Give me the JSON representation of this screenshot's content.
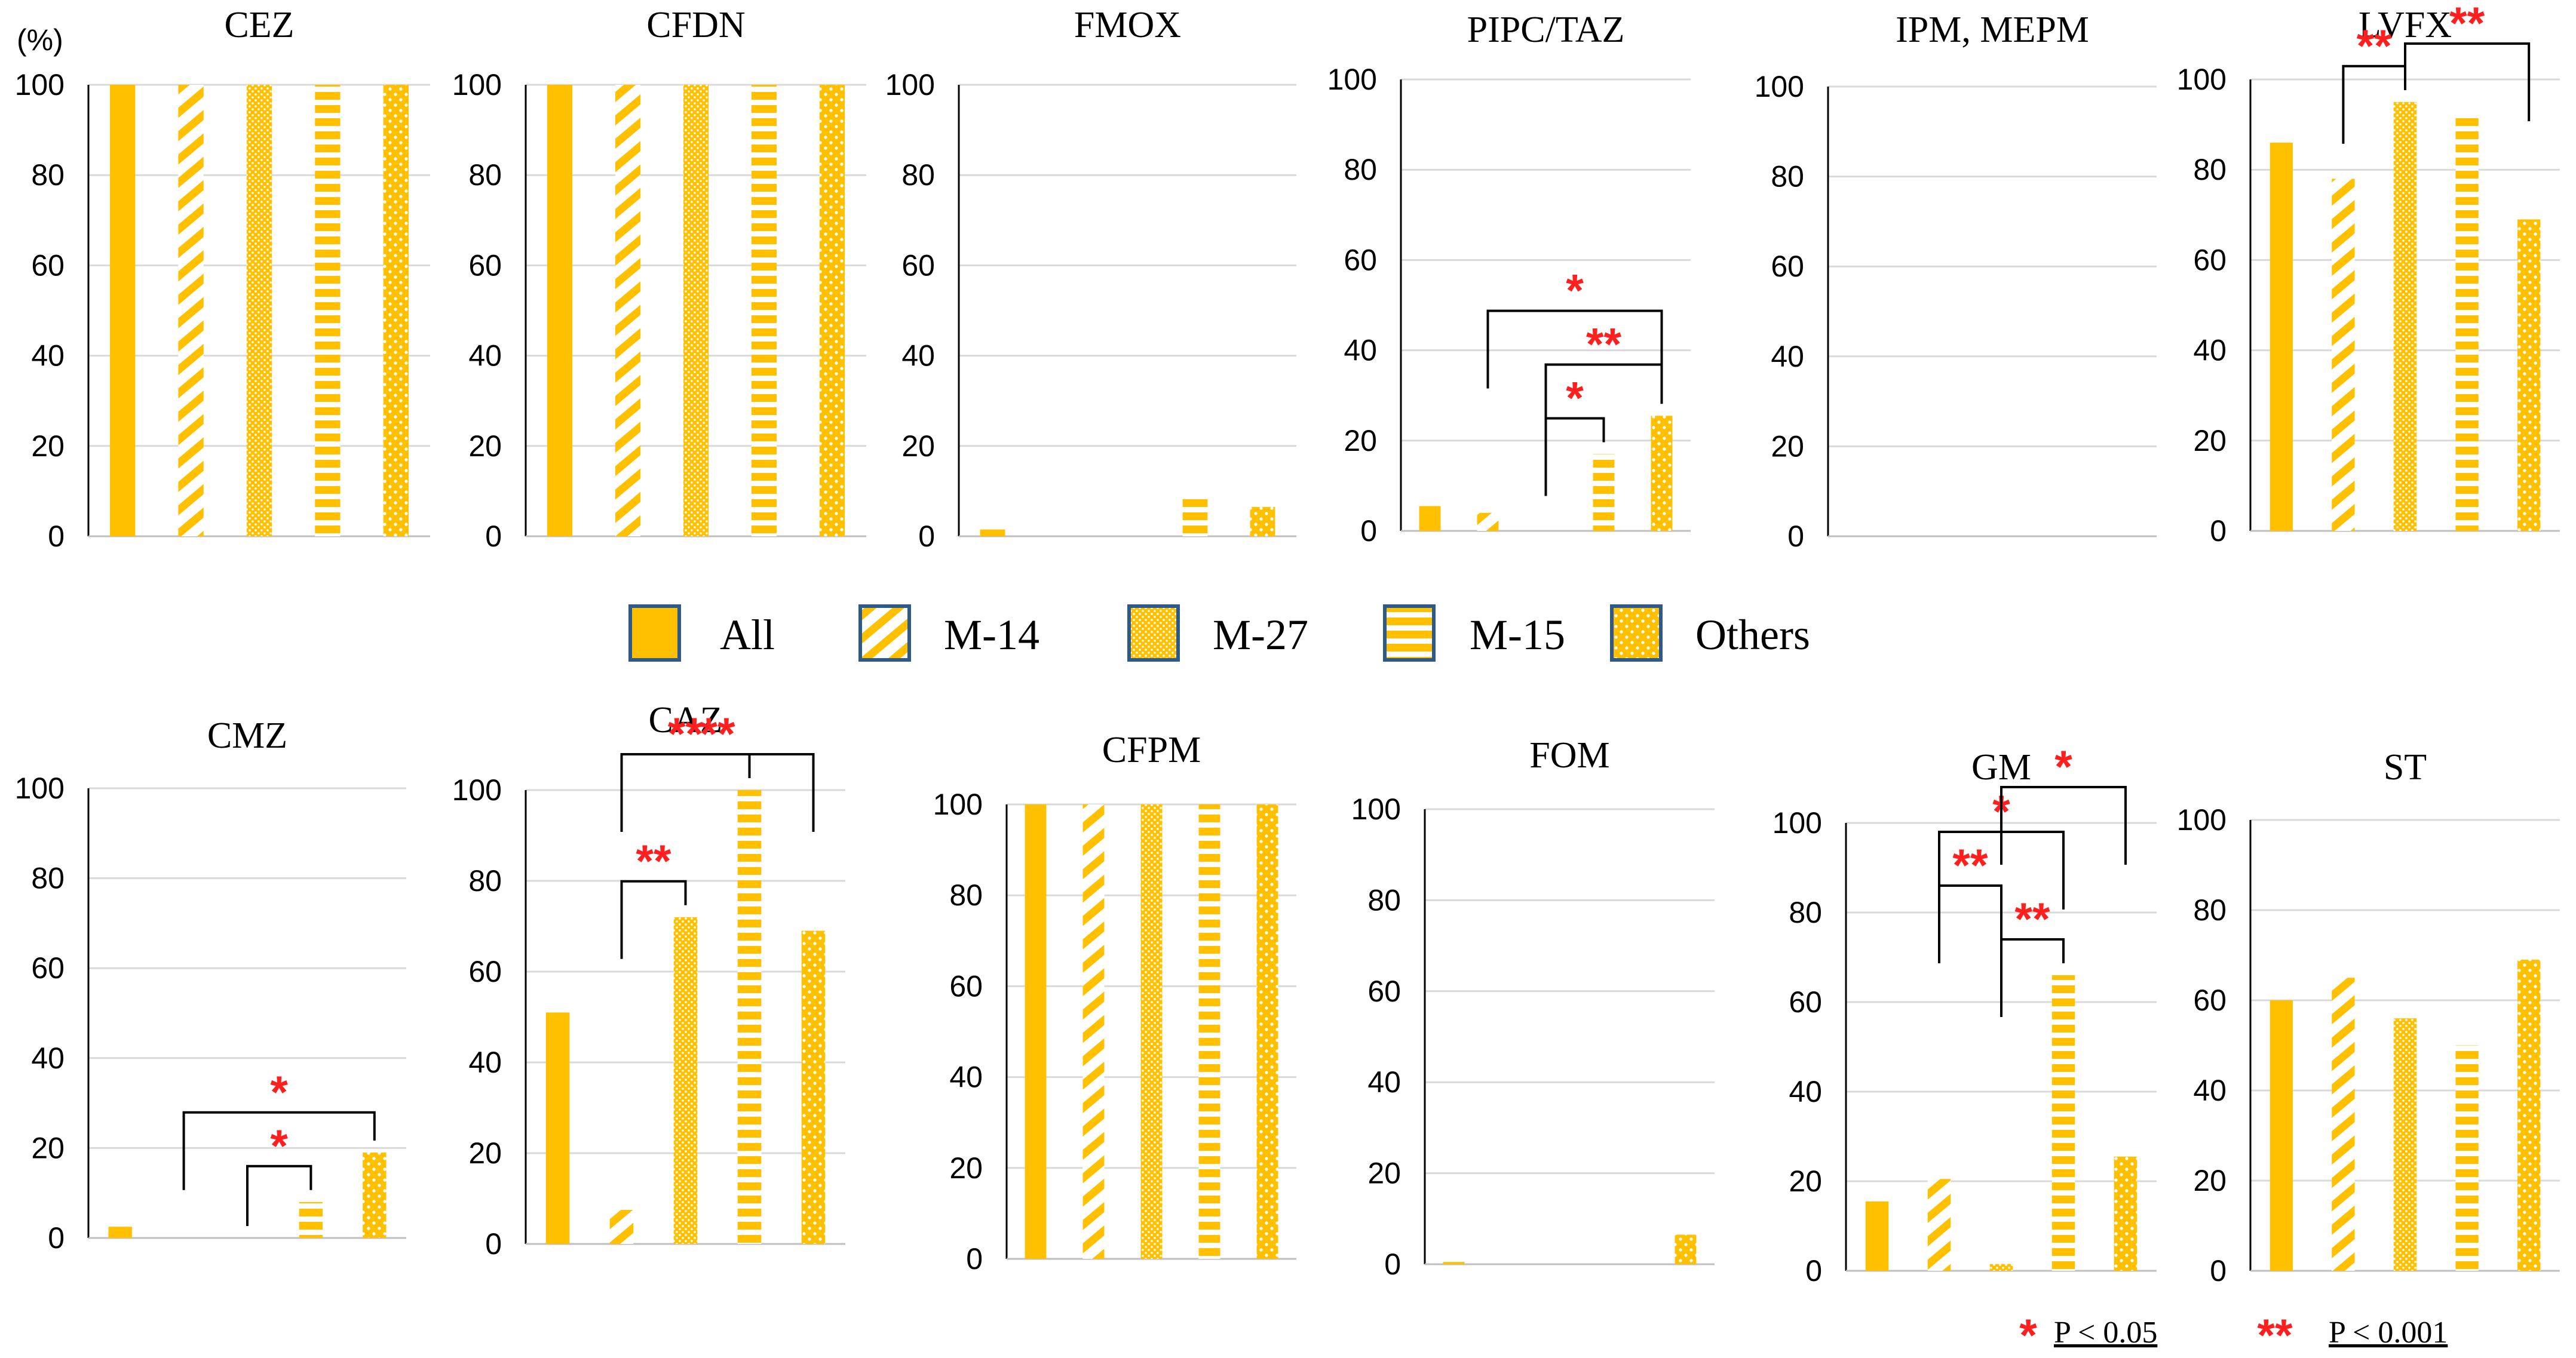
{
  "unit_label": "(%)",
  "colors": {
    "bar": "#ffc000",
    "grid": "#d9d9d9",
    "axis": "#000000",
    "star": "#ff1f1f"
  },
  "legend": [
    {
      "label": "All",
      "pattern": "solid"
    },
    {
      "label": "M-14",
      "pattern": "diag"
    },
    {
      "label": "M-27",
      "pattern": "dots"
    },
    {
      "label": "M-15",
      "pattern": "hstripe"
    },
    {
      "label": "Others",
      "pattern": "spots"
    }
  ],
  "significance_note": {
    "single_star": "*",
    "single_text": "P < 0.05",
    "double_star": "**",
    "double_text": "P < 0.001"
  },
  "chart_data": [
    {
      "type": "bar",
      "title": "CEZ",
      "categories": [
        "All",
        "M-14",
        "M-27",
        "M-15",
        "Others"
      ],
      "values": [
        100,
        100,
        100,
        100,
        100
      ],
      "ylim": [
        0,
        100
      ],
      "yticks": [
        0,
        20,
        40,
        60,
        80,
        100
      ],
      "significance": []
    },
    {
      "type": "bar",
      "title": "CFDN",
      "categories": [
        "All",
        "M-14",
        "M-27",
        "M-15",
        "Others"
      ],
      "values": [
        100,
        100,
        100,
        100,
        100
      ],
      "ylim": [
        0,
        100
      ],
      "yticks": [
        0,
        20,
        40,
        60,
        80,
        100
      ],
      "significance": []
    },
    {
      "type": "bar",
      "title": "FMOX",
      "categories": [
        "All",
        "M-14",
        "M-27",
        "M-15",
        "Others"
      ],
      "values": [
        1.5,
        0,
        0,
        8.5,
        6.5
      ],
      "ylim": [
        0,
        100
      ],
      "yticks": [
        0,
        20,
        40,
        60,
        80,
        100
      ],
      "significance": []
    },
    {
      "type": "bar",
      "title": "PIPC/TAZ",
      "categories": [
        "All",
        "M-14",
        "M-27",
        "M-15",
        "Others"
      ],
      "values": [
        5.5,
        4,
        0,
        17,
        25.5
      ],
      "ylim": [
        0,
        100
      ],
      "yticks": [
        0,
        20,
        40,
        60,
        80,
        100
      ],
      "significance": [
        {
          "from": 1,
          "to": 4,
          "level": "*"
        },
        {
          "from": 2,
          "to": 4,
          "level": "**"
        },
        {
          "from": 2,
          "to": 3,
          "level": "*"
        }
      ]
    },
    {
      "type": "bar",
      "title": "IPM, MEPM",
      "categories": [
        "All",
        "M-14",
        "M-27",
        "M-15",
        "Others"
      ],
      "values": [
        0,
        0,
        0,
        0,
        0
      ],
      "ylim": [
        0,
        100
      ],
      "yticks": [
        0,
        20,
        40,
        60,
        80,
        100
      ],
      "significance": []
    },
    {
      "type": "bar",
      "title": "LVFX",
      "categories": [
        "All",
        "M-14",
        "M-27",
        "M-15",
        "Others"
      ],
      "values": [
        86,
        78,
        95,
        91.5,
        69
      ],
      "ylim": [
        0,
        100
      ],
      "yticks": [
        0,
        20,
        40,
        60,
        80,
        100
      ],
      "significance": [
        {
          "from": 1,
          "to": 2,
          "level": "**"
        },
        {
          "from": 2,
          "to": 4,
          "level": "**"
        }
      ]
    },
    {
      "type": "bar",
      "title": "CMZ",
      "categories": [
        "All",
        "M-14",
        "M-27",
        "M-15",
        "Others"
      ],
      "values": [
        2.5,
        0,
        0,
        8,
        19
      ],
      "ylim": [
        0,
        100
      ],
      "yticks": [
        0,
        20,
        40,
        60,
        80,
        100
      ],
      "significance": [
        {
          "from": 1,
          "to": 4,
          "level": "*"
        },
        {
          "from": 2,
          "to": 3,
          "level": "*"
        }
      ]
    },
    {
      "type": "bar",
      "title": "CAZ",
      "categories": [
        "All",
        "M-14",
        "M-27",
        "M-15",
        "Others"
      ],
      "values": [
        51,
        7.5,
        72,
        100,
        69
      ],
      "ylim": [
        0,
        100
      ],
      "yticks": [
        0,
        20,
        40,
        60,
        80,
        100
      ],
      "significance": [
        {
          "from": 1,
          "to": 4,
          "level": "**"
        },
        {
          "from": 1,
          "to": 3,
          "level": "**"
        },
        {
          "from": 1,
          "to": 2,
          "level": "**"
        }
      ]
    },
    {
      "type": "bar",
      "title": "CFPM",
      "categories": [
        "All",
        "M-14",
        "M-27",
        "M-15",
        "Others"
      ],
      "values": [
        100,
        100,
        100,
        100,
        100
      ],
      "ylim": [
        0,
        100
      ],
      "yticks": [
        0,
        20,
        40,
        60,
        80,
        100
      ],
      "significance": []
    },
    {
      "type": "bar",
      "title": "FOM",
      "categories": [
        "All",
        "M-14",
        "M-27",
        "M-15",
        "Others"
      ],
      "values": [
        0.5,
        0,
        0,
        0,
        6.5
      ],
      "ylim": [
        0,
        100
      ],
      "yticks": [
        0,
        20,
        40,
        60,
        80,
        100
      ],
      "significance": []
    },
    {
      "type": "bar",
      "title": "GM",
      "categories": [
        "All",
        "M-14",
        "M-27",
        "M-15",
        "Others"
      ],
      "values": [
        15.5,
        20.5,
        1.5,
        66,
        25.5
      ],
      "ylim": [
        0,
        100
      ],
      "yticks": [
        0,
        20,
        40,
        60,
        80,
        100
      ],
      "significance": [
        {
          "from": 1,
          "to": 3,
          "level": "*"
        },
        {
          "from": 2,
          "to": 4,
          "level": "*"
        },
        {
          "from": 2,
          "to": 3,
          "level": "**"
        },
        {
          "from": 1,
          "to": 2,
          "level": "**"
        }
      ]
    },
    {
      "type": "bar",
      "title": "ST",
      "categories": [
        "All",
        "M-14",
        "M-27",
        "M-15",
        "Others"
      ],
      "values": [
        60,
        65,
        56,
        50,
        69
      ],
      "ylim": [
        0,
        100
      ],
      "yticks": [
        0,
        20,
        40,
        60,
        80,
        100
      ],
      "significance": []
    }
  ]
}
